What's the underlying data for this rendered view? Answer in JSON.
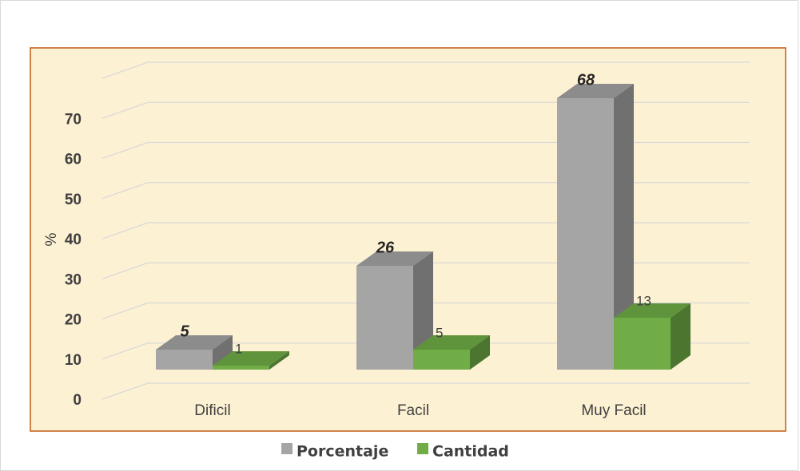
{
  "chart_data": {
    "type": "bar3d",
    "y_label": "%",
    "categories": [
      "Dificil",
      "Facil",
      "Muy Facil"
    ],
    "series": [
      {
        "name": "Porcentaje",
        "color": "#a5a5a5",
        "values": [
          5,
          26,
          68
        ]
      },
      {
        "name": "Cantidad",
        "color": "#70ad47",
        "values": [
          1,
          5,
          13
        ]
      }
    ],
    "ylim": [
      0,
      80
    ],
    "yticks": [
      0,
      10,
      20,
      30,
      40,
      50,
      60,
      70
    ],
    "grid": true,
    "legend": "bottom"
  }
}
